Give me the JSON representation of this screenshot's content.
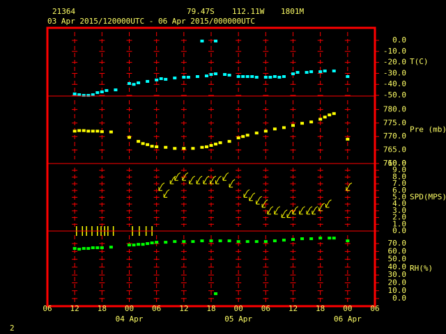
{
  "header": {
    "station": "21364",
    "lat": "79.47S",
    "lon": "112.11W",
    "elev": "1801M",
    "period": "03 Apr 2015/120000UTC - 06 Apr 2015/000000UTC"
  },
  "footer": "2",
  "chart_data": [
    {
      "type": "scatter",
      "label": "T(C)",
      "color": "#00ffff",
      "xlim": [
        0,
        72
      ],
      "ylim": [
        -50.6,
        11.4
      ],
      "yticks": [
        {
          "value": 0,
          "label": "0.0"
        },
        {
          "value": -10,
          "label": "-10.0"
        },
        {
          "value": -20,
          "label": "-20.0"
        },
        {
          "value": -30,
          "label": "-30.0"
        },
        {
          "value": -40,
          "label": "-40.0"
        },
        {
          "value": -50,
          "label": "-50.0"
        }
      ],
      "x": [
        6,
        7,
        8,
        9,
        10,
        11,
        12,
        13,
        15,
        18,
        19,
        20,
        22,
        24,
        25,
        26,
        28,
        30,
        31,
        33,
        34,
        35,
        36,
        37,
        37,
        39,
        40,
        42,
        43,
        44,
        45,
        46,
        48,
        49,
        50,
        51,
        52,
        54,
        55,
        57,
        58,
        60,
        61,
        63,
        66
      ],
      "values": [
        -48.7,
        -49.4,
        -50,
        -50,
        -49.4,
        -47.5,
        -46.8,
        -45.6,
        -45,
        -39.2,
        -40,
        -38.6,
        -37.3,
        -36,
        -34.8,
        -35.4,
        -34.2,
        -33.5,
        -33.5,
        -32.9,
        -0.6,
        -32.3,
        -31,
        -30.4,
        -0.6,
        -31,
        -31.6,
        -32.9,
        -32.9,
        -32.9,
        -32.9,
        -33.5,
        -33.5,
        -33.5,
        -32.9,
        -33.5,
        -32.9,
        -30.4,
        -29.1,
        -29.1,
        -28.5,
        -28.5,
        -27.8,
        -27.8,
        -32.9
      ]
    },
    {
      "type": "scatter",
      "label": "Pre (mb)",
      "color": "#ffff00",
      "xlim": [
        0,
        72
      ],
      "ylim": [
        760,
        785
      ],
      "yticks": [
        {
          "value": 780,
          "label": "780.0"
        },
        {
          "value": 775,
          "label": "775.0"
        },
        {
          "value": 770,
          "label": "770.0"
        },
        {
          "value": 765,
          "label": "765.0"
        },
        {
          "value": 760,
          "label": "760.0"
        }
      ],
      "x": [
        6,
        7,
        8,
        9,
        10,
        11,
        12,
        14,
        18,
        20,
        21,
        22,
        23,
        24,
        26,
        28,
        30,
        32,
        34,
        35,
        36,
        37,
        38,
        40,
        42,
        43,
        44,
        46,
        48,
        50,
        52,
        54,
        56,
        58,
        60,
        61,
        62,
        63,
        66
      ],
      "values": [
        772,
        772.2,
        772.2,
        772,
        772,
        772,
        771.8,
        771.7,
        769.7,
        768.2,
        767.4,
        767,
        766.4,
        766.2,
        766,
        765.6,
        765.6,
        765.6,
        766,
        766.2,
        766.7,
        767.2,
        767.7,
        768.2,
        769.5,
        770,
        770.5,
        771.3,
        772,
        772.8,
        773.3,
        774.1,
        774.9,
        775.4,
        776.4,
        777.2,
        778,
        778.5,
        769
      ]
    },
    {
      "type": "wind",
      "label": "SPD(MPS)",
      "color": "#ffff00",
      "xlim": [
        0,
        72
      ],
      "ylim": [
        0,
        10
      ],
      "yticks": [
        {
          "value": 10,
          "label": "10.0"
        },
        {
          "value": 9,
          "label": "9.0"
        },
        {
          "value": 8,
          "label": "8.0"
        },
        {
          "value": 7,
          "label": "7.0"
        },
        {
          "value": 6,
          "label": "6.0"
        },
        {
          "value": 5,
          "label": "5.0"
        },
        {
          "value": 4,
          "label": "4.0"
        },
        {
          "value": 3,
          "label": "3.0"
        },
        {
          "value": 2,
          "label": "2.0"
        },
        {
          "value": 1,
          "label": "1.0"
        },
        {
          "value": 0,
          "label": "0.0"
        }
      ],
      "x": [
        6.4,
        7.7,
        8.6,
        9.8,
        11,
        11.8,
        12.6,
        13.3,
        14.5,
        18.7,
        20.2,
        21.7,
        23,
        24.5,
        25.6,
        27,
        28,
        29.7,
        31.2,
        32.8,
        34.3,
        35.8,
        37,
        38.6,
        40,
        43.2,
        44.4,
        45.9,
        47.2,
        48.4,
        49.9,
        51.5,
        52.7,
        53.9,
        55.4,
        57,
        58.2,
        59.7,
        61.2,
        65.7
      ],
      "values": [
        0,
        0,
        0,
        0,
        0,
        0,
        0,
        0,
        0,
        0,
        0,
        0,
        0,
        6,
        5,
        7,
        7.5,
        7.5,
        7,
        7,
        7,
        7,
        7,
        7.5,
        6.5,
        5,
        4.5,
        4,
        3.5,
        2.5,
        2.5,
        2,
        2,
        2.5,
        2.5,
        2.5,
        2.5,
        3,
        3.5,
        6
      ]
    },
    {
      "type": "scatter",
      "label": "RH(%)",
      "color": "#00ff00",
      "xlim": [
        0,
        72
      ],
      "ylim": [
        -9.7,
        86
      ],
      "yticks": [
        {
          "value": 70,
          "label": "70.0"
        },
        {
          "value": 60,
          "label": "60.0"
        },
        {
          "value": 50,
          "label": "50.0"
        },
        {
          "value": 40,
          "label": "40.0"
        },
        {
          "value": 30,
          "label": "30.0"
        },
        {
          "value": 20,
          "label": "20.0"
        },
        {
          "value": 10,
          "label": "10.0"
        },
        {
          "value": 0,
          "label": "0.0"
        }
      ],
      "x": [
        6,
        7,
        8,
        9,
        10,
        11,
        12,
        14,
        18,
        19,
        20,
        21,
        22,
        23,
        24,
        26,
        28,
        30,
        32,
        34,
        36,
        37,
        38,
        40,
        42,
        44,
        46,
        48,
        50,
        52,
        54,
        56,
        58,
        60,
        62,
        63,
        66
      ],
      "values": [
        63.8,
        62.9,
        63.8,
        63.8,
        64.7,
        64.7,
        64.7,
        65.5,
        68.2,
        68.2,
        69,
        69,
        70,
        70.9,
        71.7,
        71.7,
        72.6,
        72.6,
        72.6,
        73.5,
        73.5,
        6.2,
        73.5,
        73.5,
        72.6,
        72.6,
        72.6,
        72.6,
        73.5,
        74.4,
        75.3,
        76.2,
        76.2,
        77,
        77,
        77,
        73.5
      ],
      "xticks": [
        {
          "value": 0,
          "label": "06"
        },
        {
          "value": 6,
          "label": "12"
        },
        {
          "value": 12,
          "label": "18"
        },
        {
          "value": 18,
          "label": "00"
        },
        {
          "value": 24,
          "label": "06"
        },
        {
          "value": 30,
          "label": "12"
        },
        {
          "value": 36,
          "label": "18"
        },
        {
          "value": 42,
          "label": "00"
        },
        {
          "value": 48,
          "label": "06"
        },
        {
          "value": 54,
          "label": "12"
        },
        {
          "value": 60,
          "label": "18"
        },
        {
          "value": 66,
          "label": "00"
        },
        {
          "value": 72,
          "label": "06"
        }
      ],
      "date_labels": [
        {
          "value": 18,
          "label": "04 Apr"
        },
        {
          "value": 42,
          "label": "05 Apr"
        },
        {
          "value": 66,
          "label": "06 Apr"
        }
      ]
    }
  ]
}
